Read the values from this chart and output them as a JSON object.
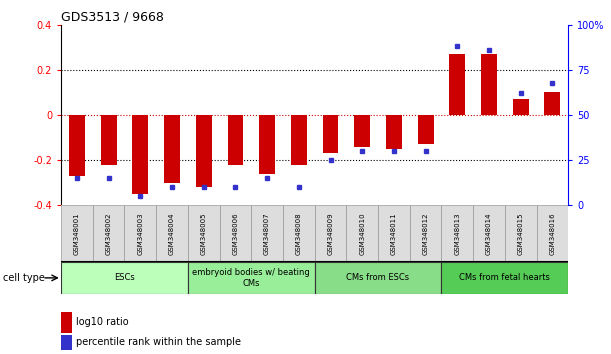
{
  "title": "GDS3513 / 9668",
  "samples": [
    "GSM348001",
    "GSM348002",
    "GSM348003",
    "GSM348004",
    "GSM348005",
    "GSM348006",
    "GSM348007",
    "GSM348008",
    "GSM348009",
    "GSM348010",
    "GSM348011",
    "GSM348012",
    "GSM348013",
    "GSM348014",
    "GSM348015",
    "GSM348016"
  ],
  "log10_ratio": [
    -0.27,
    -0.22,
    -0.35,
    -0.3,
    -0.32,
    -0.22,
    -0.26,
    -0.22,
    -0.17,
    -0.14,
    -0.15,
    -0.13,
    0.27,
    0.27,
    0.07,
    0.1
  ],
  "percentile_rank": [
    15,
    15,
    5,
    10,
    10,
    10,
    15,
    10,
    25,
    30,
    30,
    30,
    88,
    86,
    62,
    68
  ],
  "cell_type_groups": [
    {
      "label": "ESCs",
      "start": 0,
      "end": 4,
      "color": "#bbffbb"
    },
    {
      "label": "embryoid bodies w/ beating\nCMs",
      "start": 4,
      "end": 8,
      "color": "#99ee99"
    },
    {
      "label": "CMs from ESCs",
      "start": 8,
      "end": 12,
      "color": "#88dd88"
    },
    {
      "label": "CMs from fetal hearts",
      "start": 12,
      "end": 16,
      "color": "#55cc55"
    }
  ],
  "ylim": [
    -0.4,
    0.4
  ],
  "yticks": [
    -0.4,
    -0.2,
    0.0,
    0.2,
    0.4
  ],
  "y2ticks": [
    0,
    25,
    50,
    75,
    100
  ],
  "bar_color": "#cc0000",
  "dot_color": "#3333cc",
  "legend_bar_label": "log10 ratio",
  "legend_dot_label": "percentile rank within the sample"
}
